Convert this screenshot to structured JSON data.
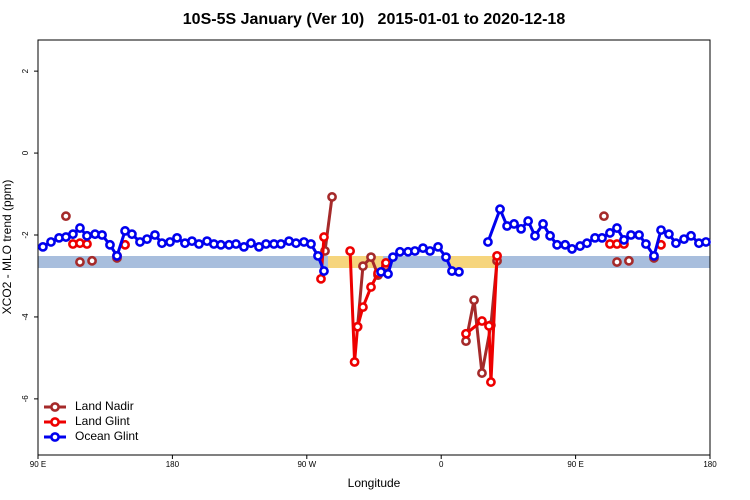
{
  "chart_data": {
    "type": "line",
    "title": "10S-5S January (Ver 10)   2015-01-01 to 2020-12-18",
    "x_label": "Longitude",
    "y_label": "XCO2 - MLO trend (ppm)",
    "xlim": [
      90,
      540
    ],
    "xticks": [
      {
        "value": 90,
        "label": "90 E"
      },
      180,
      {
        "value": 270,
        "label": "90 W"
      },
      {
        "value": 360,
        "label": "0"
      },
      {
        "value": 450,
        "label": "90 E"
      },
      {
        "value": 540,
        "label": "180"
      }
    ],
    "ylim": [
      -7.37,
      2.76
    ],
    "yticks": [
      2,
      0,
      -2,
      -4,
      -6
    ],
    "legend": "bottom-left",
    "series": [
      {
        "name": "Land Nadir",
        "color": "#a52a2a",
        "x": [
          108.7,
          null,
          118.1,
          null,
          126.2,
          null,
          142.9,
          null,
          282.2,
          286.9,
          null,
          304,
          307.6,
          313,
          317.7,
          323,
          null,
          376.6,
          382,
          387.3,
          393.3,
          397.4,
          null,
          469,
          null,
          477.7,
          null,
          485.7,
          null,
          502.5
        ],
        "values": [
          -1.54,
          null,
          -2.66,
          null,
          -2.63,
          null,
          -2.56,
          null,
          -2.39,
          -1.07,
          null,
          -4.24,
          -2.76,
          -2.54,
          -2.98,
          -2.76,
          null,
          -4.59,
          -3.59,
          -5.37,
          -4.2,
          -2.63,
          null,
          -1.54,
          null,
          -2.66,
          null,
          -2.63,
          null,
          -2.56
        ]
      },
      {
        "name": "Land Glint",
        "color": "#ee0000",
        "x": [
          113.4,
          null,
          118.1,
          null,
          122.8,
          null,
          142.9,
          null,
          148.3,
          null,
          279.5,
          281.5,
          null,
          299,
          302,
          304,
          307.6,
          313,
          317.7,
          323,
          null,
          376.6,
          387.3,
          392,
          393.3,
          397.4,
          null,
          473,
          null,
          477.7,
          null,
          482.4,
          null,
          507.2
        ],
        "values": [
          -2.22,
          null,
          -2.2,
          null,
          -2.22,
          null,
          -2.51,
          null,
          -2.24,
          null,
          -3.07,
          -2.05,
          null,
          -2.39,
          -5.1,
          -4.24,
          -3.76,
          -3.27,
          -2.93,
          -2.68,
          null,
          -4.41,
          -4.1,
          -4.22,
          -5.59,
          -2.51,
          null,
          -2.22,
          null,
          -2.22,
          null,
          -2.22,
          null,
          -2.24
        ]
      },
      {
        "name": "Ocean Glint",
        "color": "#0000ee",
        "x": [
          93.3,
          98.7,
          104.1,
          108.7,
          113.4,
          118.1,
          122.8,
          128.2,
          132.9,
          138.2,
          142.9,
          148.3,
          152.9,
          158.3,
          163,
          168.3,
          173,
          178.4,
          183.1,
          188.4,
          193.1,
          197.8,
          203.2,
          207.8,
          212.5,
          217.9,
          222.6,
          227.9,
          232.6,
          238,
          242.7,
          248,
          252.7,
          258.1,
          262.8,
          268.1,
          272.8,
          277.5,
          281.5,
          null,
          319.7,
          324.4,
          327.7,
          332.4,
          337.8,
          342.4,
          347.8,
          352.5,
          357.9,
          363.2,
          367.2,
          371.9,
          null,
          391.3,
          399.4,
          404.1,
          408.8,
          413.5,
          418.2,
          422.8,
          428.2,
          432.9,
          437.6,
          443,
          447.6,
          453,
          457.6,
          463,
          467.7,
          473,
          477.7,
          482.4,
          487.1,
          492.5,
          497.1,
          502.5,
          507.2,
          512.5,
          517.2,
          522.6,
          527.3,
          532.6,
          537.3
        ],
        "values": [
          -2.29,
          -2.17,
          -2.07,
          -2.05,
          -1.98,
          -1.83,
          -2.02,
          -1.98,
          -2.0,
          -2.24,
          -2.51,
          -1.9,
          -1.98,
          -2.17,
          -2.1,
          -2.0,
          -2.2,
          -2.17,
          -2.07,
          -2.2,
          -2.15,
          -2.22,
          -2.15,
          -2.22,
          -2.24,
          -2.24,
          -2.22,
          -2.29,
          -2.2,
          -2.29,
          -2.22,
          -2.22,
          -2.22,
          -2.15,
          -2.2,
          -2.17,
          -2.22,
          -2.51,
          -2.88,
          null,
          -2.9,
          -2.95,
          -2.54,
          -2.41,
          -2.41,
          -2.39,
          -2.32,
          -2.39,
          -2.29,
          -2.54,
          -2.88,
          -2.9,
          null,
          -2.17,
          -1.37,
          -1.78,
          -1.73,
          -1.85,
          -1.66,
          -2.02,
          -1.73,
          -2.02,
          -2.24,
          -2.24,
          -2.34,
          -2.27,
          -2.2,
          -2.07,
          -2.07,
          -1.95,
          -1.83,
          -2.12,
          -2.0,
          -2.0,
          -2.22,
          -2.51,
          -1.88,
          -1.98,
          -2.2,
          -2.1,
          -2.02,
          -2.2,
          -2.17
        ]
      }
    ]
  }
}
